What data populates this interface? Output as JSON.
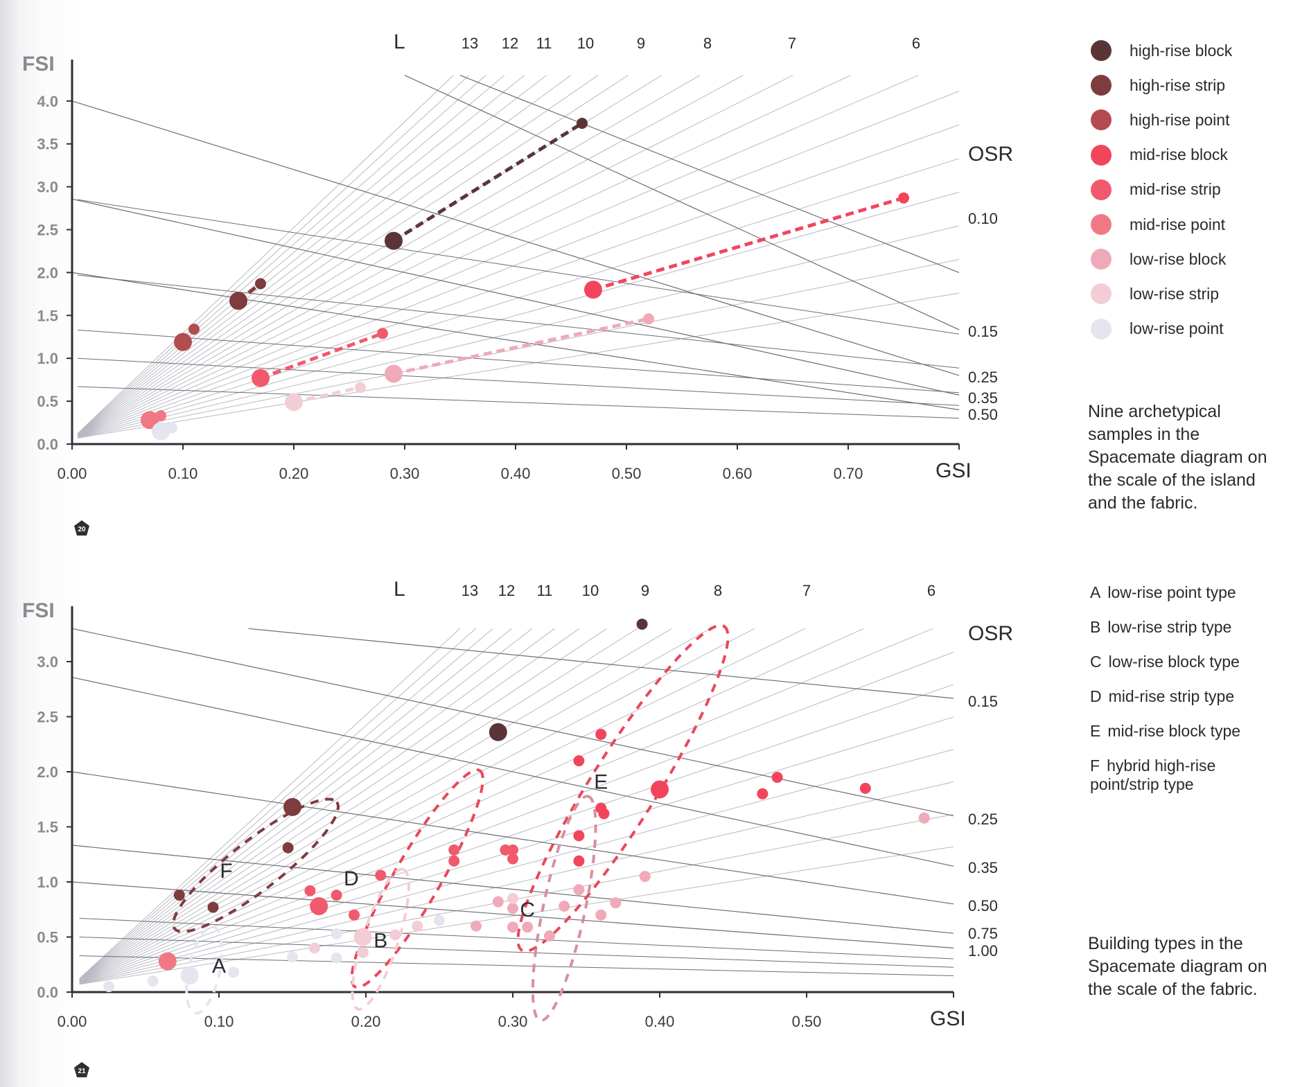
{
  "chart_data": [
    {
      "type": "scatter",
      "title": "Nine archetypical samples in the Spacemate diagram on the scale of the island and the fabric.",
      "xlabel": "GSI",
      "ylabel": "FSI",
      "xlim": [
        0,
        0.8
      ],
      "ylim": [
        0,
        4.3
      ],
      "xticks": [
        "0.00",
        "0.10",
        "0.20",
        "0.30",
        "0.40",
        "0.50",
        "0.60",
        "0.70"
      ],
      "yticks": [
        "0.0",
        "0.5",
        "1.0",
        "1.5",
        "2.0",
        "2.5",
        "3.0",
        "3.5",
        "4.0"
      ],
      "layer_lines_label": "L",
      "layer_lines": [
        13,
        12,
        11,
        10,
        9,
        8,
        7,
        6
      ],
      "osr_label": "OSR",
      "osr_lines": [
        "0.10",
        "0.15",
        "0.25",
        "0.35",
        "0.50"
      ],
      "grid": false,
      "legend_position": "right",
      "series": [
        {
          "name": "high-rise block",
          "color": "#5a3537",
          "points": [
            {
              "gsi": 0.29,
              "fsi": 2.37,
              "scale": "island"
            },
            {
              "gsi": 0.46,
              "fsi": 3.74,
              "scale": "fabric"
            }
          ]
        },
        {
          "name": "high-rise strip",
          "color": "#7e3c3f",
          "points": [
            {
              "gsi": 0.15,
              "fsi": 1.67,
              "scale": "island"
            },
            {
              "gsi": 0.17,
              "fsi": 1.87,
              "scale": "fabric"
            }
          ]
        },
        {
          "name": "high-rise point",
          "color": "#b24c4f",
          "points": [
            {
              "gsi": 0.1,
              "fsi": 1.19,
              "scale": "island"
            },
            {
              "gsi": 0.11,
              "fsi": 1.34,
              "scale": "fabric"
            }
          ]
        },
        {
          "name": "mid-rise block",
          "color": "#f2455c",
          "points": [
            {
              "gsi": 0.47,
              "fsi": 1.8,
              "scale": "island"
            },
            {
              "gsi": 0.75,
              "fsi": 2.87,
              "scale": "fabric"
            }
          ]
        },
        {
          "name": "mid-rise strip",
          "color": "#f05a6c",
          "points": [
            {
              "gsi": 0.17,
              "fsi": 0.77,
              "scale": "island"
            },
            {
              "gsi": 0.28,
              "fsi": 1.29,
              "scale": "fabric"
            }
          ]
        },
        {
          "name": "mid-rise point",
          "color": "#f07884",
          "points": [
            {
              "gsi": 0.07,
              "fsi": 0.28,
              "scale": "island"
            },
            {
              "gsi": 0.08,
              "fsi": 0.33,
              "scale": "fabric"
            }
          ]
        },
        {
          "name": "low-rise block",
          "color": "#f0a9b8",
          "points": [
            {
              "gsi": 0.29,
              "fsi": 0.82,
              "scale": "island"
            },
            {
              "gsi": 0.52,
              "fsi": 1.46,
              "scale": "fabric"
            }
          ]
        },
        {
          "name": "low-rise strip",
          "color": "#f3cdd5",
          "points": [
            {
              "gsi": 0.2,
              "fsi": 0.49,
              "scale": "island"
            },
            {
              "gsi": 0.26,
              "fsi": 0.66,
              "scale": "fabric"
            }
          ]
        },
        {
          "name": "low-rise point",
          "color": "#e4e5ef",
          "points": [
            {
              "gsi": 0.08,
              "fsi": 0.15,
              "scale": "island"
            },
            {
              "gsi": 0.09,
              "fsi": 0.19,
              "scale": "fabric"
            }
          ]
        }
      ],
      "badge": "20"
    },
    {
      "type": "scatter",
      "title": "Building types in the Spacemate diagram on the scale of the fabric.",
      "xlabel": "GSI",
      "ylabel": "FSI",
      "xlim": [
        0,
        0.6
      ],
      "ylim": [
        0,
        3.3
      ],
      "xticks": [
        "0.00",
        "0.10",
        "0.20",
        "0.30",
        "0.40",
        "0.50"
      ],
      "yticks": [
        "0.0",
        "0.5",
        "1.0",
        "1.5",
        "2.0",
        "2.5",
        "3.0"
      ],
      "layer_lines_label": "L",
      "layer_lines": [
        13,
        12,
        11,
        10,
        9,
        8,
        7,
        6
      ],
      "osr_label": "OSR",
      "osr_lines": [
        "0.15",
        "0.25",
        "0.35",
        "0.50",
        "0.75",
        "1.00"
      ],
      "grid": false,
      "clusters": [
        {
          "letter": "A",
          "name": "low-rise point type",
          "label_at": [
            0.1,
            0.24
          ],
          "color": "#e4e5ef"
        },
        {
          "letter": "B",
          "name": "low-rise strip type",
          "label_at": [
            0.21,
            0.47
          ],
          "color": "#f3cdd5"
        },
        {
          "letter": "C",
          "name": "low-rise block type",
          "label_at": [
            0.31,
            0.75
          ],
          "color": "#e0a0ae"
        },
        {
          "letter": "D",
          "name": "mid-rise strip type",
          "label_at": [
            0.19,
            1.03
          ],
          "color": "#f05a6c"
        },
        {
          "letter": "E",
          "name": "mid-rise block type",
          "label_at": [
            0.36,
            1.91
          ],
          "color": "#f2455c"
        },
        {
          "letter": "F",
          "name": "hybrid high-rise point/strip type",
          "label_at": [
            0.105,
            1.1
          ],
          "color": "#7e3c3f"
        }
      ],
      "points": [
        {
          "gsi": 0.388,
          "fsi": 3.34,
          "type": "high-rise block",
          "size": "s"
        },
        {
          "gsi": 0.29,
          "fsi": 2.36,
          "type": "high-rise block",
          "size": "l"
        },
        {
          "gsi": 0.15,
          "fsi": 1.68,
          "type": "high-rise strip",
          "size": "l"
        },
        {
          "gsi": 0.147,
          "fsi": 1.31,
          "type": "high-rise strip",
          "size": "s"
        },
        {
          "gsi": 0.073,
          "fsi": 0.88,
          "type": "high-rise strip",
          "size": "s"
        },
        {
          "gsi": 0.096,
          "fsi": 0.77,
          "type": "high-rise strip",
          "size": "s"
        },
        {
          "gsi": 0.36,
          "fsi": 2.34,
          "type": "mid-rise block",
          "size": "s"
        },
        {
          "gsi": 0.345,
          "fsi": 2.1,
          "type": "mid-rise block",
          "size": "s"
        },
        {
          "gsi": 0.4,
          "fsi": 1.84,
          "type": "mid-rise block",
          "size": "l"
        },
        {
          "gsi": 0.48,
          "fsi": 1.95,
          "type": "mid-rise block",
          "size": "s"
        },
        {
          "gsi": 0.47,
          "fsi": 1.8,
          "type": "mid-rise block",
          "size": "s"
        },
        {
          "gsi": 0.54,
          "fsi": 1.85,
          "type": "mid-rise block",
          "size": "s"
        },
        {
          "gsi": 0.36,
          "fsi": 1.67,
          "type": "mid-rise block",
          "size": "s"
        },
        {
          "gsi": 0.362,
          "fsi": 1.62,
          "type": "mid-rise block",
          "size": "s"
        },
        {
          "gsi": 0.345,
          "fsi": 1.42,
          "type": "mid-rise block",
          "size": "s"
        },
        {
          "gsi": 0.345,
          "fsi": 1.19,
          "type": "mid-rise block",
          "size": "s"
        },
        {
          "gsi": 0.26,
          "fsi": 1.29,
          "type": "mid-rise strip",
          "size": "s"
        },
        {
          "gsi": 0.26,
          "fsi": 1.19,
          "type": "mid-rise strip",
          "size": "s"
        },
        {
          "gsi": 0.295,
          "fsi": 1.29,
          "type": "mid-rise strip",
          "size": "s"
        },
        {
          "gsi": 0.3,
          "fsi": 1.29,
          "type": "mid-rise strip",
          "size": "s"
        },
        {
          "gsi": 0.3,
          "fsi": 1.21,
          "type": "mid-rise strip",
          "size": "s"
        },
        {
          "gsi": 0.21,
          "fsi": 1.06,
          "type": "mid-rise strip",
          "size": "s"
        },
        {
          "gsi": 0.162,
          "fsi": 0.92,
          "type": "mid-rise strip",
          "size": "s"
        },
        {
          "gsi": 0.18,
          "fsi": 0.88,
          "type": "mid-rise strip",
          "size": "s"
        },
        {
          "gsi": 0.168,
          "fsi": 0.78,
          "type": "mid-rise strip",
          "size": "l"
        },
        {
          "gsi": 0.192,
          "fsi": 0.7,
          "type": "mid-rise strip",
          "size": "s"
        },
        {
          "gsi": 0.065,
          "fsi": 0.28,
          "type": "mid-rise point",
          "size": "l"
        },
        {
          "gsi": 0.58,
          "fsi": 1.58,
          "type": "low-rise block",
          "size": "s"
        },
        {
          "gsi": 0.39,
          "fsi": 1.05,
          "type": "low-rise block",
          "size": "s"
        },
        {
          "gsi": 0.345,
          "fsi": 0.93,
          "type": "low-rise block",
          "size": "s"
        },
        {
          "gsi": 0.37,
          "fsi": 0.81,
          "type": "low-rise block",
          "size": "s"
        },
        {
          "gsi": 0.335,
          "fsi": 0.78,
          "type": "low-rise block",
          "size": "s"
        },
        {
          "gsi": 0.36,
          "fsi": 0.7,
          "type": "low-rise block",
          "size": "s"
        },
        {
          "gsi": 0.29,
          "fsi": 0.82,
          "type": "low-rise block",
          "size": "s"
        },
        {
          "gsi": 0.3,
          "fsi": 0.76,
          "type": "low-rise block",
          "size": "s"
        },
        {
          "gsi": 0.275,
          "fsi": 0.6,
          "type": "low-rise block",
          "size": "s"
        },
        {
          "gsi": 0.3,
          "fsi": 0.59,
          "type": "low-rise block",
          "size": "s"
        },
        {
          "gsi": 0.31,
          "fsi": 0.59,
          "type": "low-rise block",
          "size": "s"
        },
        {
          "gsi": 0.325,
          "fsi": 0.51,
          "type": "low-rise block",
          "size": "s"
        },
        {
          "gsi": 0.3,
          "fsi": 0.85,
          "type": "low-rise strip",
          "size": "s"
        },
        {
          "gsi": 0.235,
          "fsi": 0.6,
          "type": "low-rise strip",
          "size": "s"
        },
        {
          "gsi": 0.22,
          "fsi": 0.52,
          "type": "low-rise strip",
          "size": "s"
        },
        {
          "gsi": 0.198,
          "fsi": 0.5,
          "type": "low-rise strip",
          "size": "l"
        },
        {
          "gsi": 0.198,
          "fsi": 0.36,
          "type": "low-rise strip",
          "size": "s"
        },
        {
          "gsi": 0.165,
          "fsi": 0.4,
          "type": "low-rise strip",
          "size": "s"
        },
        {
          "gsi": 0.25,
          "fsi": 0.65,
          "type": "low-rise point",
          "size": "s"
        },
        {
          "gsi": 0.18,
          "fsi": 0.53,
          "type": "low-rise point",
          "size": "s"
        },
        {
          "gsi": 0.18,
          "fsi": 0.31,
          "type": "low-rise point",
          "size": "s"
        },
        {
          "gsi": 0.15,
          "fsi": 0.32,
          "type": "low-rise point",
          "size": "s"
        },
        {
          "gsi": 0.08,
          "fsi": 0.15,
          "type": "low-rise point",
          "size": "l"
        },
        {
          "gsi": 0.055,
          "fsi": 0.1,
          "type": "low-rise point",
          "size": "s"
        },
        {
          "gsi": 0.025,
          "fsi": 0.05,
          "type": "low-rise point",
          "size": "s"
        },
        {
          "gsi": 0.11,
          "fsi": 0.18,
          "type": "low-rise point",
          "size": "s"
        }
      ],
      "badge": "21"
    }
  ],
  "legend": {
    "items": [
      {
        "label": "high-rise block",
        "color": "#5a3537"
      },
      {
        "label": "high-rise strip",
        "color": "#7e3c3f"
      },
      {
        "label": "high-rise point",
        "color": "#b24c4f"
      },
      {
        "label": "mid-rise block",
        "color": "#f2455c"
      },
      {
        "label": "mid-rise strip",
        "color": "#f05a6c"
      },
      {
        "label": "mid-rise point",
        "color": "#f07884"
      },
      {
        "label": "low-rise block",
        "color": "#f0a9b8"
      },
      {
        "label": "low-rise strip",
        "color": "#f3cdd5"
      },
      {
        "label": "low-rise point",
        "color": "#e4e5ef"
      }
    ]
  },
  "captions": {
    "top": "Nine archetypical samples in the Spacemate diagram on the scale of the island and the fabric.",
    "bottom": "Building types in the Spacemate diagram on the scale of the fabric."
  },
  "types_list": [
    {
      "letter": "A",
      "label": "low-rise point type"
    },
    {
      "letter": "B",
      "label": "low-rise strip type"
    },
    {
      "letter": "C",
      "label": "low-rise block type"
    },
    {
      "letter": "D",
      "label": "mid-rise strip type"
    },
    {
      "letter": "E",
      "label": "mid-rise block type"
    },
    {
      "letter": "F",
      "label": "hybrid high-rise point/strip type"
    }
  ]
}
